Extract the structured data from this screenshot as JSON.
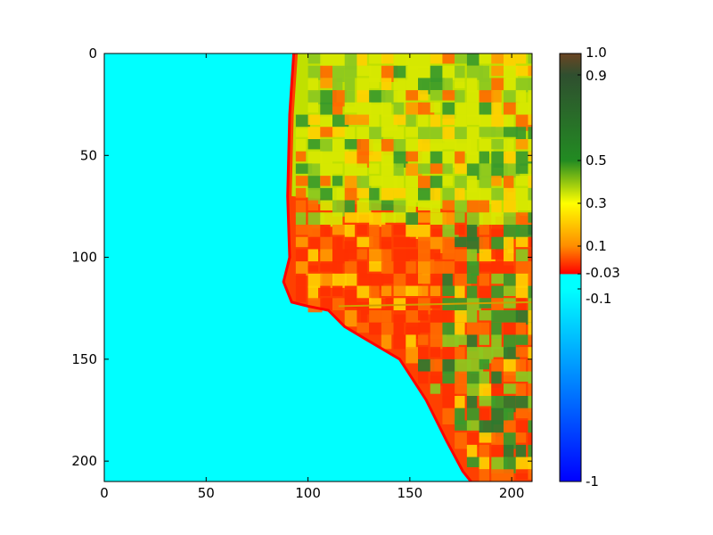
{
  "chart_data": {
    "type": "heatmap",
    "title": "",
    "xlabel": "",
    "ylabel": "",
    "xlim": [
      0,
      210
    ],
    "ylim": [
      210,
      0
    ],
    "x_ticks": [
      0,
      50,
      100,
      150,
      200
    ],
    "y_ticks": [
      0,
      50,
      100,
      150,
      200
    ],
    "x_tick_labels": [
      "0",
      "50",
      "100",
      "150",
      "200"
    ],
    "y_tick_labels": [
      "0",
      "50",
      "100",
      "150",
      "200"
    ],
    "grid": false,
    "legend": "none",
    "colorbar": {
      "range": [
        -1,
        1
      ],
      "ticks": [
        1.0,
        0.9,
        0.5,
        0.3,
        0.1,
        -0.03,
        -0.1,
        -1
      ],
      "tick_labels": [
        "1.0",
        "0.9",
        "0.5",
        "0.3",
        "0.1",
        "-0.03",
        "-0.1",
        "-1"
      ],
      "stops": [
        {
          "value": 1.0,
          "color": "#6b4423"
        },
        {
          "value": 0.9,
          "color": "#2f4f2f"
        },
        {
          "value": 0.5,
          "color": "#228b22"
        },
        {
          "value": 0.3,
          "color": "#ffff00"
        },
        {
          "value": 0.1,
          "color": "#ff8c00"
        },
        {
          "value": -0.03,
          "color": "#ff0000"
        },
        {
          "value": -0.031,
          "color": "#00ffff"
        },
        {
          "value": -0.1,
          "color": "#00ffff"
        },
        {
          "value": -0.55,
          "color": "#0080ff"
        },
        {
          "value": -1,
          "color": "#0000ff"
        }
      ]
    },
    "regions": {
      "water": {
        "value": -0.08,
        "color": "#00ffff"
      },
      "shore": {
        "value": -0.02,
        "color": "#ff0000"
      },
      "north_farmland": {
        "value": 0.35,
        "color": "#c0e000"
      },
      "urban_area": {
        "value": 0.05,
        "color": "#ff4000"
      },
      "fields_color_set": [
        "#ff6a00",
        "#ff9a00",
        "#ffd000",
        "#d8e800",
        "#8cc820",
        "#3a9a2a",
        "#2f7a2f",
        "#ff3000"
      ]
    },
    "coastline": [
      [
        93,
        0
      ],
      [
        91,
        30
      ],
      [
        90,
        70
      ],
      [
        91,
        100
      ],
      [
        88,
        112
      ],
      [
        92,
        122
      ],
      [
        100,
        124
      ],
      [
        110,
        126
      ],
      [
        118,
        134
      ],
      [
        128,
        140
      ],
      [
        145,
        150
      ],
      [
        158,
        170
      ],
      [
        168,
        190
      ],
      [
        176,
        205
      ],
      [
        180,
        210
      ]
    ],
    "coastline_note_free": true
  }
}
